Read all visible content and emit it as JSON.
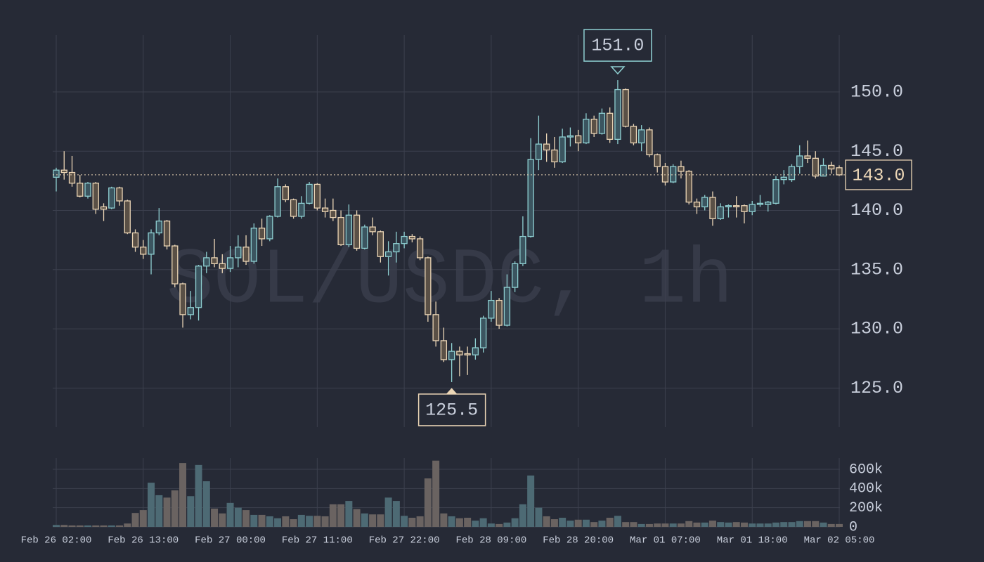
{
  "chart_data": {
    "type": "candlestick",
    "watermark": "SOL/USDC, 1h",
    "categories": [
      "Feb 26 02:00",
      null,
      null,
      null,
      null,
      null,
      null,
      null,
      null,
      null,
      null,
      "Feb 26 13:00",
      null,
      null,
      null,
      null,
      null,
      null,
      null,
      null,
      null,
      null,
      "Feb 27 00:00",
      null,
      null,
      null,
      null,
      null,
      null,
      null,
      null,
      null,
      null,
      "Feb 27 11:00",
      null,
      null,
      null,
      null,
      null,
      null,
      null,
      null,
      null,
      null,
      "Feb 27 22:00",
      null,
      null,
      null,
      null,
      null,
      null,
      null,
      null,
      null,
      null,
      "Feb 28 09:00",
      null,
      null,
      null,
      null,
      null,
      null,
      null,
      null,
      null,
      null,
      "Feb 28 20:00",
      null,
      null,
      null,
      null,
      null,
      null,
      null,
      null,
      null,
      null,
      "Mar 01 07:00",
      null,
      null,
      null,
      null,
      null,
      null,
      null,
      null,
      null,
      null,
      "Mar 01 18:00",
      null,
      null,
      null,
      null,
      null,
      null,
      null,
      null,
      null,
      null,
      "Mar 02 05:00"
    ],
    "open": [
      142.8,
      143.4,
      143.2,
      142.3,
      141.2,
      142.3,
      140.3,
      140.2,
      141.9,
      140.8,
      138.1,
      136.9,
      136.3,
      138.1,
      139.1,
      137.0,
      133.8,
      131.2,
      131.8,
      135.3,
      136.0,
      135.5,
      135.1,
      136.0,
      136.9,
      135.7,
      138.5,
      137.6,
      139.5,
      142.0,
      140.9,
      139.5,
      140.6,
      142.2,
      140.2,
      140.0,
      139.4,
      137.1,
      139.6,
      136.8,
      138.6,
      138.2,
      136.1,
      136.5,
      137.2,
      137.8,
      137.6,
      136.0,
      131.2,
      129.0,
      127.4,
      128.1,
      127.9,
      127.8,
      128.4,
      130.9,
      132.4,
      130.3,
      133.5,
      135.5,
      137.8,
      144.3,
      145.6,
      145.1,
      144.1,
      146.2,
      146.3,
      145.7,
      147.7,
      146.5,
      148.2,
      146.0,
      150.2,
      147.1,
      145.7,
      146.8,
      144.7,
      143.7,
      142.4,
      143.7,
      143.3,
      140.7,
      140.3,
      141.1,
      139.3,
      140.3,
      140.4,
      140.4,
      139.9,
      140.5,
      140.5,
      140.6,
      142.6,
      142.6,
      143.7,
      144.6,
      144.4,
      142.9,
      143.8,
      143.6
    ],
    "high": [
      143.6,
      145.0,
      144.6,
      143.0,
      142.4,
      142.4,
      140.6,
      142.0,
      142.0,
      140.9,
      138.4,
      137.5,
      138.4,
      140.2,
      139.2,
      137.1,
      133.9,
      133.2,
      135.4,
      136.5,
      137.6,
      136.3,
      137.0,
      137.9,
      137.9,
      138.9,
      139.3,
      139.6,
      142.7,
      142.2,
      141.0,
      141.2,
      142.4,
      142.3,
      141.0,
      141.0,
      140.0,
      140.5,
      140.0,
      138.8,
      139.4,
      138.3,
      137.4,
      138.2,
      138.2,
      138.0,
      137.8,
      136.1,
      132.3,
      130.1,
      128.8,
      128.5,
      128.5,
      129.2,
      131.1,
      133.2,
      132.6,
      134.6,
      135.7,
      139.5,
      146.1,
      148.0,
      146.5,
      146.2,
      146.9,
      147.0,
      146.8,
      148.2,
      148.0,
      148.6,
      148.7,
      151.0,
      150.3,
      147.3,
      147.2,
      147.0,
      144.8,
      144.0,
      143.9,
      144.2,
      143.4,
      141.0,
      141.3,
      141.6,
      140.6,
      140.5,
      141.2,
      140.5,
      140.8,
      141.3,
      140.8,
      142.9,
      143.4,
      143.9,
      145.5,
      145.9,
      145.0,
      144.4,
      144.1,
      143.8
    ],
    "low": [
      141.6,
      142.6,
      142.0,
      141.1,
      141.0,
      139.7,
      139.1,
      140.1,
      140.4,
      138.0,
      136.5,
      135.9,
      134.6,
      137.9,
      136.7,
      133.5,
      130.1,
      130.8,
      130.7,
      134.7,
      135.2,
      134.7,
      134.8,
      135.2,
      135.4,
      135.5,
      137.0,
      137.4,
      139.4,
      140.7,
      139.3,
      139.3,
      140.5,
      140.0,
      139.4,
      139.1,
      137.0,
      136.9,
      136.6,
      136.7,
      137.9,
      135.6,
      134.5,
      135.6,
      136.8,
      137.3,
      135.8,
      130.6,
      128.5,
      127.2,
      125.5,
      126.0,
      126.1,
      127.4,
      128.0,
      130.6,
      130.0,
      130.2,
      133.1,
      135.3,
      137.7,
      143.4,
      144.1,
      143.6,
      144.0,
      145.4,
      145.0,
      145.6,
      146.2,
      146.4,
      145.7,
      145.6,
      147.0,
      145.5,
      145.0,
      144.5,
      143.2,
      142.1,
      142.3,
      142.7,
      140.5,
      139.7,
      140.0,
      138.7,
      139.2,
      139.4,
      139.4,
      138.9,
      139.6,
      140.3,
      139.9,
      140.5,
      142.2,
      142.4,
      143.1,
      144.0,
      142.7,
      142.9,
      143.1,
      142.9
    ],
    "close": [
      143.4,
      143.2,
      142.3,
      141.2,
      142.3,
      140.1,
      140.1,
      141.9,
      140.8,
      138.1,
      136.9,
      136.3,
      138.1,
      139.1,
      137.0,
      133.8,
      131.2,
      131.8,
      135.3,
      136.0,
      135.5,
      135.1,
      136.0,
      136.9,
      135.7,
      138.5,
      137.6,
      139.5,
      142.0,
      140.9,
      139.5,
      140.6,
      142.2,
      140.2,
      139.9,
      139.4,
      137.1,
      139.6,
      136.8,
      138.6,
      138.2,
      136.1,
      136.5,
      137.2,
      137.8,
      137.6,
      136.0,
      131.2,
      129.0,
      127.4,
      128.1,
      127.8,
      127.8,
      128.4,
      130.9,
      132.4,
      130.3,
      133.5,
      135.5,
      137.8,
      144.3,
      145.6,
      145.1,
      144.1,
      146.2,
      146.3,
      145.7,
      147.7,
      146.5,
      148.2,
      146.0,
      150.2,
      147.1,
      145.7,
      146.8,
      144.7,
      143.7,
      142.4,
      143.7,
      143.3,
      140.7,
      140.3,
      141.1,
      139.3,
      140.3,
      140.4,
      140.3,
      139.9,
      140.5,
      140.6,
      140.7,
      142.6,
      142.8,
      143.7,
      144.6,
      144.4,
      142.9,
      143.8,
      143.5,
      143.0
    ],
    "volume": [
      20000,
      20000,
      15000,
      15000,
      15000,
      15000,
      15000,
      15000,
      15000,
      35000,
      145000,
      175000,
      460000,
      330000,
      305000,
      380000,
      665000,
      320000,
      645000,
      475000,
      190000,
      140000,
      250000,
      200000,
      175000,
      125000,
      125000,
      110000,
      90000,
      110000,
      80000,
      125000,
      115000,
      115000,
      110000,
      235000,
      235000,
      270000,
      185000,
      140000,
      130000,
      130000,
      305000,
      270000,
      115000,
      95000,
      110000,
      505000,
      690000,
      140000,
      110000,
      90000,
      95000,
      65000,
      90000,
      35000,
      30000,
      45000,
      90000,
      235000,
      535000,
      200000,
      110000,
      80000,
      95000,
      65000,
      75000,
      75000,
      50000,
      65000,
      95000,
      115000,
      50000,
      50000,
      30000,
      30000,
      35000,
      35000,
      35000,
      35000,
      60000,
      45000,
      45000,
      65000,
      50000,
      45000,
      50000,
      45000,
      35000,
      35000,
      35000,
      45000,
      50000,
      50000,
      60000,
      60000,
      60000,
      45000,
      30000,
      30000
    ],
    "up_color": "#8fd0d2",
    "down_color": "#ecd6b6",
    "volume_up_color": "#4d6a74",
    "volume_down_color": "#6a6361",
    "ylim": [
      121.7,
      154.8
    ],
    "yticks": [
      {
        "value": 125,
        "label": "125.0"
      },
      {
        "value": 130,
        "label": "130.0"
      },
      {
        "value": 135,
        "label": "135.0"
      },
      {
        "value": 140,
        "label": "140.0"
      },
      {
        "value": 145,
        "label": "145.0"
      },
      {
        "value": 150,
        "label": "150.0"
      }
    ],
    "volume_ylim": [
      0,
      717000
    ],
    "volume_yticks": [
      0,
      {
        "value": 200000,
        "label": "200k"
      },
      {
        "value": 400000,
        "label": "400k"
      },
      {
        "value": 600000,
        "label": "600k"
      }
    ],
    "max_marker": {
      "value": 151.0,
      "label": "151.0"
    },
    "min_marker": {
      "value": 125.5,
      "label": "125.5"
    },
    "last_price": {
      "value": 143.0,
      "label": "143.0"
    },
    "grid": true
  }
}
